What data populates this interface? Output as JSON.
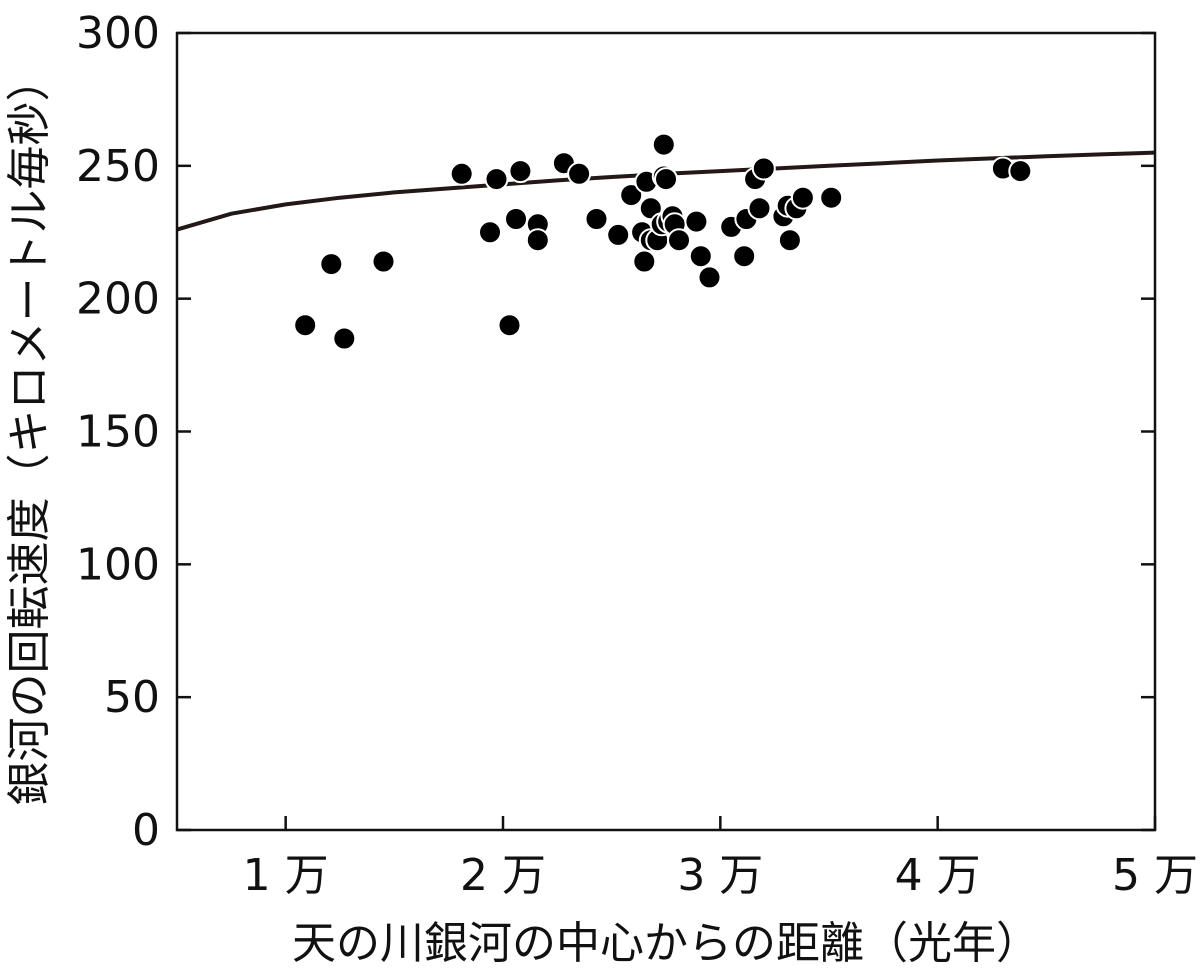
{
  "chart_data": {
    "type": "scatter",
    "title": "",
    "xlabel": "天の川銀河の中心からの距離（光年）",
    "ylabel": "銀河の回転速度（キロメートル毎秒）",
    "xlim": [
      5000,
      50000
    ],
    "ylim": [
      0,
      300
    ],
    "x_ticks": [
      {
        "value": 10000,
        "label": "1 万"
      },
      {
        "value": 20000,
        "label": "2 万"
      },
      {
        "value": 30000,
        "label": "3 万"
      },
      {
        "value": 40000,
        "label": "4 万"
      },
      {
        "value": 50000,
        "label": "5 万"
      }
    ],
    "y_ticks": [
      {
        "value": 0,
        "label": "0"
      },
      {
        "value": 50,
        "label": "50"
      },
      {
        "value": 100,
        "label": "100"
      },
      {
        "value": 150,
        "label": "150"
      },
      {
        "value": 200,
        "label": "200"
      },
      {
        "value": 250,
        "label": "250"
      },
      {
        "value": 300,
        "label": "300"
      }
    ],
    "grid": false,
    "colors": {
      "points": "#000000",
      "point_edge": "#ffffff",
      "curve": "#231816",
      "axes": "#111111"
    },
    "series": [
      {
        "kind": "points",
        "x": [
          10900,
          12100,
          12700,
          14500,
          18100,
          19400,
          19700,
          20300,
          20600,
          20800,
          21600,
          21600,
          22800,
          23500,
          24300,
          25300,
          25900,
          26400,
          26500,
          26600,
          26800,
          26800,
          27100,
          27300,
          27400,
          27400,
          27500,
          27600,
          27800,
          27900,
          28100,
          28900,
          29100,
          29500,
          30500,
          31100,
          31200,
          31600,
          31800,
          32000,
          32900,
          33100,
          33200,
          33500,
          33800,
          35100,
          43000,
          43800
        ],
        "y": [
          190,
          213,
          185,
          214,
          247,
          225,
          245,
          190,
          230,
          248,
          228,
          222,
          251,
          247,
          230,
          224,
          239,
          225,
          214,
          244,
          222,
          234,
          222,
          228,
          246,
          258,
          245,
          229,
          231,
          228,
          222,
          229,
          216,
          208,
          227,
          216,
          230,
          245,
          234,
          249,
          231,
          235,
          222,
          234,
          238,
          238,
          249,
          248
        ]
      },
      {
        "kind": "curve",
        "x": [
          5000,
          7500,
          10000,
          12500,
          15000,
          17500,
          20000,
          22500,
          25000,
          27500,
          30000,
          32500,
          35000,
          37500,
          40000,
          42500,
          45000,
          47500,
          50000
        ],
        "y": [
          226,
          232,
          235.5,
          238,
          240,
          241.5,
          243,
          244.5,
          245.8,
          247,
          248,
          249,
          250,
          251,
          252,
          252.8,
          253.6,
          254.3,
          255
        ]
      }
    ]
  }
}
